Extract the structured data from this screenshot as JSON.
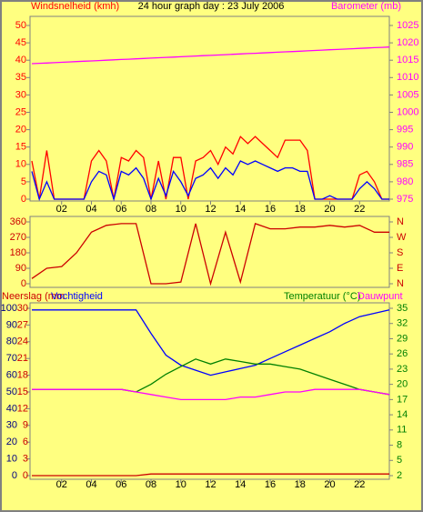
{
  "chart_data": [
    {
      "type": "line",
      "title": "24 hour graph day : 23 July 2006",
      "ylabel": "Windsnelheid (kmh)",
      "y2label": "Barometer (mb)",
      "x": [
        0,
        0.5,
        1,
        1.5,
        2,
        2.5,
        3,
        3.5,
        4,
        4.5,
        5,
        5.5,
        6,
        6.5,
        7,
        7.5,
        8,
        8.5,
        9,
        9.5,
        10,
        10.5,
        11,
        11.5,
        12,
        12.5,
        13,
        13.5,
        14,
        14.5,
        15,
        15.5,
        16,
        16.5,
        17,
        17.5,
        18,
        18.5,
        19,
        19.5,
        20,
        20.5,
        21,
        21.5,
        22,
        22.5,
        23,
        23.5,
        24
      ],
      "series": [
        {
          "color": "#ff0000",
          "values": [
            11,
            0,
            14,
            0,
            0,
            0,
            0,
            0,
            11,
            14,
            11,
            0,
            12,
            11,
            14,
            12,
            0,
            11,
            0,
            12,
            12,
            0,
            11,
            12,
            14,
            10,
            15,
            13,
            18,
            16,
            18,
            16,
            14,
            12,
            17,
            17,
            17,
            14,
            0,
            0,
            0,
            0,
            0,
            0,
            7,
            8,
            5,
            0,
            0
          ]
        },
        {
          "color": "#0000ff",
          "values": [
            8,
            0,
            5,
            0,
            0,
            0,
            0,
            0,
            5,
            8,
            7,
            0,
            8,
            7,
            9,
            6,
            0,
            6,
            1,
            8,
            5,
            1,
            6,
            7,
            9,
            6,
            9,
            7,
            11,
            10,
            11,
            10,
            9,
            8,
            9,
            9,
            8,
            8,
            0,
            0,
            1,
            0,
            0,
            0,
            3,
            5,
            3,
            0,
            0
          ]
        },
        {
          "color": "#ff00ff",
          "axis": "y2",
          "values": [
            1014.0,
            1014.1,
            1014.2,
            1014.3,
            1014.4,
            1014.5,
            1014.6,
            1014.7,
            1014.8,
            1014.9,
            1015.0,
            1015.1,
            1015.2,
            1015.3,
            1015.4,
            1015.5,
            1015.6,
            1015.7,
            1015.8,
            1015.9,
            1016.0,
            1016.1,
            1016.2,
            1016.3,
            1016.4,
            1016.5,
            1016.6,
            1016.7,
            1016.8,
            1016.9,
            1017.0,
            1017.1,
            1017.2,
            1017.3,
            1017.4,
            1017.5,
            1017.6,
            1017.7,
            1017.8,
            1017.9,
            1018.0,
            1018.1,
            1018.2,
            1018.3,
            1018.4,
            1018.5,
            1018.6,
            1018.7,
            1018.8
          ]
        }
      ],
      "xlim": [
        0,
        24
      ],
      "xticks": [
        {
          "value": 2,
          "label": "02"
        },
        {
          "value": 4,
          "label": "04"
        },
        {
          "value": 6,
          "label": "06"
        },
        {
          "value": 8,
          "label": "08"
        },
        {
          "value": 10,
          "label": "10"
        },
        {
          "value": 12,
          "label": "12"
        },
        {
          "value": 14,
          "label": "14"
        },
        {
          "value": 16,
          "label": "16"
        },
        {
          "value": 18,
          "label": "18"
        },
        {
          "value": 20,
          "label": "20"
        },
        {
          "value": 22,
          "label": "22"
        }
      ],
      "ylim": [
        0,
        50
      ],
      "yticks": [
        0,
        5,
        10,
        15,
        20,
        25,
        30,
        35,
        40,
        45,
        50
      ],
      "y2lim": [
        975,
        1025
      ],
      "y2ticks": [
        975,
        980,
        985,
        990,
        995,
        1000,
        1005,
        1010,
        1015,
        1020,
        1025
      ]
    },
    {
      "type": "line",
      "x": [
        0,
        1,
        2,
        3,
        4,
        5,
        6,
        7,
        8,
        9,
        10,
        11,
        12,
        13,
        14,
        15,
        16,
        17,
        18,
        19,
        20,
        21,
        22,
        23,
        24
      ],
      "series": [
        {
          "color": "#cc0000",
          "values": [
            30,
            90,
            100,
            180,
            300,
            340,
            350,
            350,
            0,
            0,
            10,
            350,
            0,
            300,
            10,
            350,
            320,
            320,
            330,
            330,
            340,
            330,
            340,
            300,
            300
          ]
        }
      ],
      "xlim": [
        0,
        24
      ],
      "ylim": [
        0,
        360
      ],
      "yticks": [
        0,
        90,
        180,
        270,
        360
      ],
      "y2lim": [
        0,
        360
      ],
      "y2ticks": [
        {
          "value": 360,
          "label": "N"
        },
        {
          "value": 270,
          "label": "W"
        },
        {
          "value": 180,
          "label": "S"
        },
        {
          "value": 90,
          "label": "E"
        },
        {
          "value": 0,
          "label": "N"
        }
      ]
    },
    {
      "type": "line",
      "x": [
        0,
        1,
        2,
        3,
        4,
        5,
        6,
        7,
        8,
        9,
        10,
        11,
        12,
        13,
        14,
        15,
        16,
        17,
        18,
        19,
        20,
        21,
        22,
        23,
        24
      ],
      "series": [
        {
          "name": "Neerslag (mm",
          "color": "#cc0000",
          "axis": "y3",
          "values": [
            0,
            0,
            0,
            0,
            0,
            0,
            0,
            0,
            0.3,
            0.3,
            0.3,
            0.3,
            0.3,
            0.3,
            0.3,
            0.3,
            0.3,
            0.3,
            0.3,
            0.3,
            0.3,
            0.3,
            0.3,
            0.3,
            0.3
          ]
        },
        {
          "name": "Vochtigheid",
          "color": "#0000ff",
          "values": [
            99,
            99,
            99,
            99,
            99,
            99,
            99,
            99,
            85,
            72,
            66,
            63,
            60,
            62,
            64,
            66,
            70,
            74,
            78,
            82,
            86,
            91,
            95,
            97,
            99
          ]
        },
        {
          "name": "Temperatuur (°C)",
          "color": "#008000",
          "axis": "y2",
          "values": [
            19,
            19,
            19,
            19,
            19,
            19,
            19,
            18.5,
            20,
            22,
            23.5,
            25,
            24,
            25,
            24.5,
            24,
            24,
            23.5,
            23,
            22,
            21,
            20,
            19,
            18.5,
            18
          ]
        },
        {
          "name": "Dauwpunt",
          "color": "#ff00ff",
          "axis": "y2",
          "values": [
            19,
            19,
            19,
            19,
            19,
            19,
            19,
            18.5,
            18,
            17.5,
            17,
            17,
            17,
            17,
            17.5,
            17.5,
            18,
            18.5,
            18.5,
            19,
            19,
            19,
            19,
            18.5,
            18
          ]
        }
      ],
      "xlim": [
        0,
        24
      ],
      "xticks": [
        {
          "value": 2,
          "label": "02"
        },
        {
          "value": 4,
          "label": "04"
        },
        {
          "value": 6,
          "label": "06"
        },
        {
          "value": 8,
          "label": "08"
        },
        {
          "value": 10,
          "label": "10"
        },
        {
          "value": 12,
          "label": "12"
        },
        {
          "value": 14,
          "label": "14"
        },
        {
          "value": 16,
          "label": "16"
        },
        {
          "value": 18,
          "label": "18"
        },
        {
          "value": 20,
          "label": "20"
        },
        {
          "value": 22,
          "label": "22"
        }
      ],
      "ylim": [
        0,
        100
      ],
      "yticks": [
        0,
        10,
        20,
        30,
        40,
        50,
        60,
        70,
        80,
        90,
        100
      ],
      "y3lim": [
        0,
        30
      ],
      "y3ticks": [
        0,
        3,
        6,
        9,
        12,
        15,
        18,
        21,
        24,
        27,
        30
      ],
      "y2lim": [
        2,
        35
      ],
      "y2ticks": [
        2,
        5,
        8,
        11,
        14,
        17,
        20,
        23,
        26,
        29,
        32,
        35
      ]
    }
  ]
}
